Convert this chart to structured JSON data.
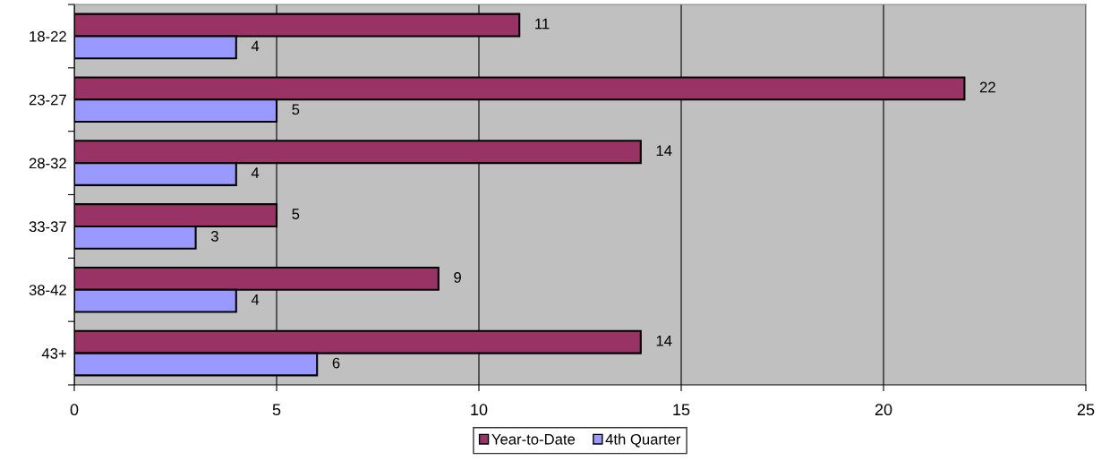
{
  "chart_data": {
    "type": "bar",
    "orientation": "horizontal",
    "categories": [
      "18-22",
      "23-27",
      "28-32",
      "33-37",
      "38-42",
      "43+"
    ],
    "series": [
      {
        "name": "Year-to-Date",
        "color": "#993366",
        "values": [
          11,
          22,
          14,
          5,
          9,
          14
        ]
      },
      {
        "name": "4th Quarter",
        "color": "#9999ff",
        "values": [
          4,
          5,
          4,
          3,
          4,
          6
        ]
      }
    ],
    "xlim": [
      0,
      25
    ],
    "xticks": [
      0,
      5,
      10,
      15,
      20,
      25
    ],
    "grid": "x",
    "legend": "bottom",
    "data_labels": true
  }
}
